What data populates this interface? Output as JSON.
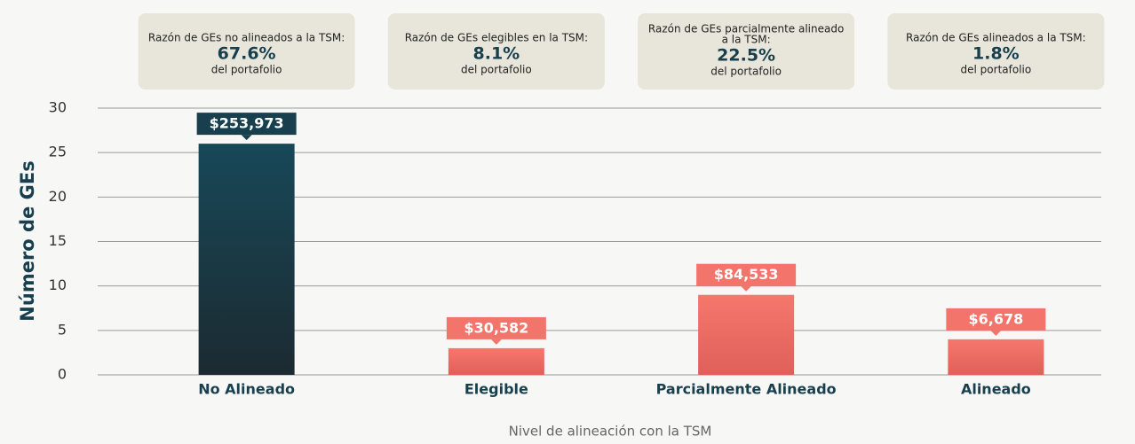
{
  "chart_data": {
    "type": "bar",
    "categories": [
      "No Alineado",
      "Elegible",
      "Parcialmente Alineado",
      "Alineado"
    ],
    "values": [
      26,
      3,
      9,
      4
    ],
    "colors": [
      "#173f4d",
      "#f3746a",
      "#f3746a",
      "#f3746a"
    ],
    "amount_labels": [
      "$253,973",
      "$30,582",
      "$84,533",
      "$6,678"
    ],
    "annotations": [
      {
        "heading": [
          "Razón de GEs no alineados a la TSM:"
        ],
        "value": "67.6%",
        "footer": "del portafolio"
      },
      {
        "heading": [
          "Razón de GEs elegibles en la TSM:"
        ],
        "value": "8.1%",
        "footer": "del portafolio"
      },
      {
        "heading": [
          "Razón de GEs parcialmente alineado",
          "a la TSM:"
        ],
        "value": "22.5%",
        "footer": "del portafolio"
      },
      {
        "heading": [
          "Razón de GEs alineados a la TSM:"
        ],
        "value": "1.8%",
        "footer": "del portafolio"
      }
    ],
    "ylabel": "Número de GEs",
    "xlabel": "Nivel de alineación con la TSM",
    "ylim": [
      0,
      30
    ],
    "yticks": [
      0,
      5,
      10,
      15,
      20,
      25,
      30
    ],
    "grid": true
  }
}
